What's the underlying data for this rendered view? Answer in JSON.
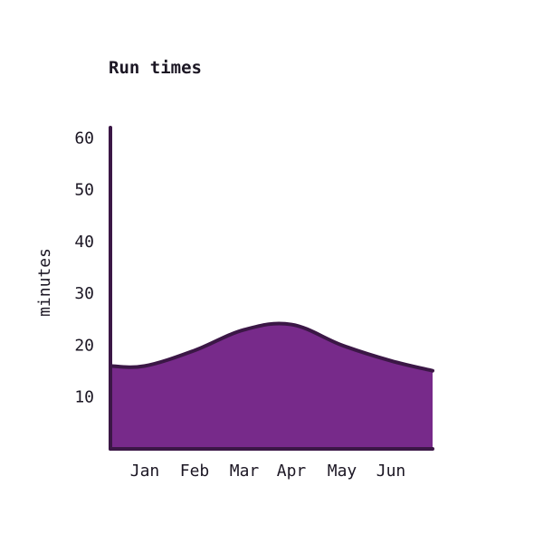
{
  "chart_data": {
    "type": "area",
    "title": "Run times",
    "xlabel": "",
    "ylabel": "minutes",
    "categories": [
      "Jan",
      "Feb",
      "Mar",
      "Apr",
      "May",
      "Jun"
    ],
    "series": [
      {
        "values": [
          16,
          19,
          23,
          24,
          20,
          17
        ]
      }
    ],
    "y_ticks": [
      10,
      20,
      30,
      40,
      50,
      60
    ],
    "ylim": [
      0,
      62
    ],
    "grid": false,
    "colors": {
      "fill": "#772a8a",
      "stroke": "#3b1746",
      "axis": "#3b1746",
      "text": "#1c1724"
    }
  }
}
